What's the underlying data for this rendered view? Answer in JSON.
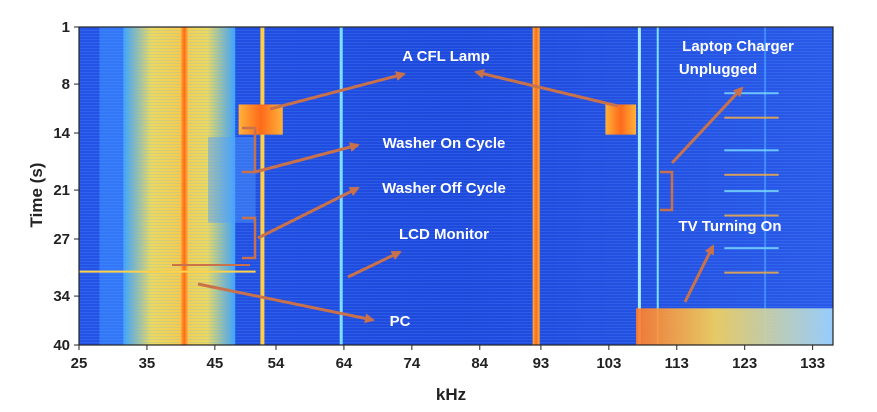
{
  "chart_data": {
    "type": "heatmap",
    "xlabel": "kHz",
    "ylabel": "Time (s)",
    "xlim": [
      25,
      136
    ],
    "ylim": [
      1,
      40
    ],
    "x_ticks": [
      25,
      35,
      45,
      54,
      64,
      74,
      84,
      93,
      103,
      113,
      123,
      133
    ],
    "y_ticks": [
      1,
      8,
      14,
      21,
      27,
      34,
      40
    ],
    "colormap": [
      "#1f3fd0",
      "#2e6cf0",
      "#3fa7ff",
      "#66d7f0",
      "#f6e05a",
      "#ffb23a",
      "#ff6a1a"
    ],
    "annotations": [
      {
        "label": "A CFL Lamp"
      },
      {
        "label": "Laptop Charger"
      },
      {
        "label": "Unplugged"
      },
      {
        "label": "Washer On Cycle"
      },
      {
        "label": "Washer Off Cycle"
      },
      {
        "label": "LCD Monitor"
      },
      {
        "label": "TV Turning On"
      },
      {
        "label": "PC"
      }
    ],
    "annotation_color": "#c9714a",
    "label_color": "#ffffff"
  }
}
